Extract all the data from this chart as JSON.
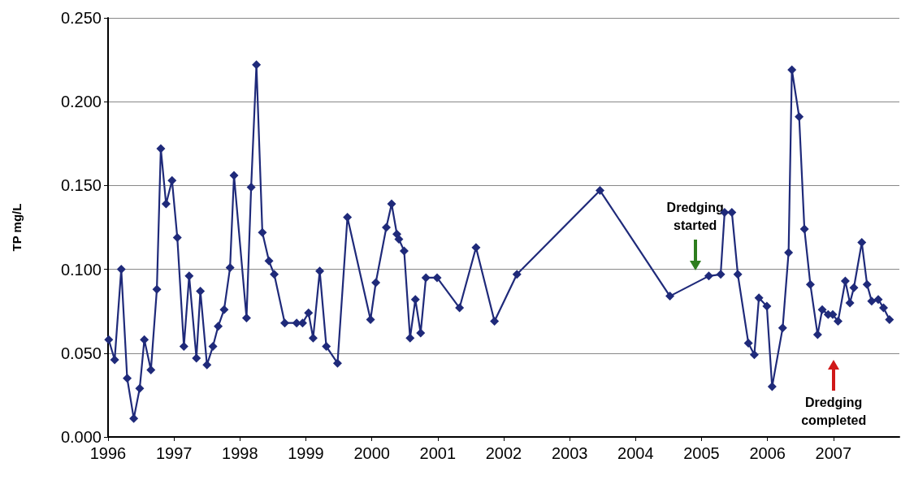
{
  "chart_data": {
    "type": "line",
    "ylabel": "TP mg/L",
    "marker": "diamond",
    "grid": "y",
    "line_style": "solid",
    "xlim": [
      1996,
      2008
    ],
    "xticks": [
      1996,
      1997,
      1998,
      1999,
      2000,
      2001,
      2002,
      2003,
      2004,
      2005,
      2006,
      2007
    ],
    "ylim": [
      0,
      0.25
    ],
    "yticks": [
      {
        "value": 0,
        "label": "0.000"
      },
      {
        "value": 0.05,
        "label": "0.050"
      },
      {
        "value": 0.1,
        "label": "0.100"
      },
      {
        "value": 0.15,
        "label": "0.150"
      },
      {
        "value": 0.2,
        "label": "0.200"
      },
      {
        "value": 0.25,
        "label": "0.250"
      }
    ],
    "series": [
      {
        "color": "#1f2a7a",
        "x": [
          1996.01,
          1996.1,
          1996.2,
          1996.29,
          1996.39,
          1996.48,
          1996.55,
          1996.65,
          1996.74,
          1996.8,
          1996.88,
          1996.97,
          1997.05,
          1997.15,
          1997.23,
          1997.34,
          1997.4,
          1997.5,
          1997.59,
          1997.67,
          1997.76,
          1997.85,
          1997.91,
          1998.1,
          1998.17,
          1998.25,
          1998.34,
          1998.44,
          1998.52,
          1998.68,
          1998.86,
          1998.95,
          1999.04,
          1999.11,
          1999.21,
          1999.31,
          1999.48,
          1999.63,
          1999.98,
          2000.06,
          2000.22,
          2000.3,
          2000.38,
          2000.41,
          2000.49,
          2000.58,
          2000.66,
          2000.74,
          2000.82,
          2000.99,
          2001.33,
          2001.58,
          2001.86,
          2002.2,
          2003.46,
          2004.52,
          2005.11,
          2005.29,
          2005.35,
          2005.46,
          2005.55,
          2005.71,
          2005.8,
          2005.87,
          2005.99,
          2006.07,
          2006.23,
          2006.32,
          2006.37,
          2006.48,
          2006.56,
          2006.65,
          2006.76,
          2006.83,
          2006.92,
          2006.99,
          2007.07,
          2007.18,
          2007.25,
          2007.31,
          2007.43,
          2007.51,
          2007.58,
          2007.68,
          2007.76,
          2007.85
        ],
        "values": [
          0.058,
          0.046,
          0.1,
          0.035,
          0.011,
          0.029,
          0.058,
          0.04,
          0.088,
          0.172,
          0.139,
          0.153,
          0.119,
          0.054,
          0.096,
          0.047,
          0.087,
          0.043,
          0.054,
          0.066,
          0.076,
          0.101,
          0.156,
          0.071,
          0.149,
          0.222,
          0.122,
          0.105,
          0.097,
          0.068,
          0.068,
          0.068,
          0.074,
          0.059,
          0.099,
          0.054,
          0.044,
          0.131,
          0.07,
          0.092,
          0.125,
          0.139,
          0.121,
          0.118,
          0.111,
          0.059,
          0.082,
          0.062,
          0.095,
          0.095,
          0.077,
          0.113,
          0.069,
          0.097,
          0.147,
          0.084,
          0.096,
          0.097,
          0.134,
          0.134,
          0.097,
          0.056,
          0.049,
          0.083,
          0.078,
          0.03,
          0.065,
          0.11,
          0.219,
          0.191,
          0.124,
          0.091,
          0.061,
          0.076,
          0.073,
          0.073,
          0.069,
          0.093,
          0.08,
          0.089,
          0.116,
          0.091,
          0.081,
          0.082,
          0.077,
          0.07
        ]
      }
    ],
    "annotations": [
      "Dredging\nstarted",
      "Dredging\ncompleted"
    ]
  }
}
